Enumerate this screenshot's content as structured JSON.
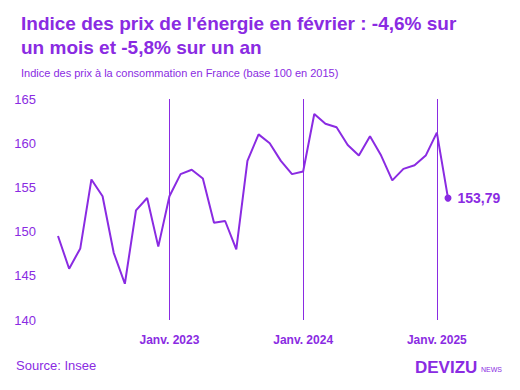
{
  "chart_data": {
    "type": "line",
    "title": "Indice des prix de l'énergie en février : -4,6% sur un mois et -5,8% sur un an",
    "subtitle": "Indice des prix à la consommation en France (base 100 en 2015)",
    "source": "Source: Insee",
    "brand": "DEVIZU",
    "brand_suffix": "NEWS",
    "categories": [
      null,
      null,
      null,
      null,
      null,
      null,
      null,
      null,
      null,
      null,
      "Janv. 2023",
      null,
      null,
      null,
      null,
      null,
      null,
      null,
      null,
      null,
      null,
      null,
      "Janv. 2024",
      null,
      null,
      null,
      null,
      null,
      null,
      null,
      null,
      null,
      null,
      null,
      "Janv. 2025",
      null
    ],
    "values": [
      149.5,
      145.8,
      148.1,
      155.9,
      154.0,
      147.6,
      144.1,
      152.4,
      153.8,
      148.3,
      154.0,
      156.5,
      157.0,
      156.0,
      151.0,
      151.2,
      148.0,
      158.0,
      161.0,
      160.0,
      158.0,
      156.5,
      156.8,
      163.3,
      162.2,
      161.8,
      159.8,
      158.6,
      160.8,
      158.6,
      155.8,
      157.1,
      157.5,
      158.6,
      161.2,
      153.79
    ],
    "value_labels": [
      null,
      null,
      null,
      null,
      null,
      null,
      null,
      null,
      null,
      null,
      null,
      null,
      null,
      null,
      null,
      null,
      null,
      null,
      null,
      null,
      null,
      null,
      null,
      null,
      null,
      null,
      null,
      null,
      null,
      null,
      null,
      null,
      null,
      null,
      null,
      "153,79"
    ],
    "color": "#8a2be2",
    "ylim": [
      140,
      165
    ],
    "yticks": [
      140,
      145,
      150,
      155,
      160,
      165
    ],
    "grid": false
  }
}
